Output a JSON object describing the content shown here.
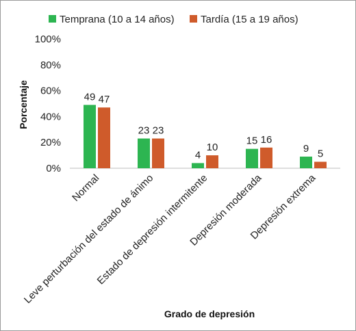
{
  "chart_data": {
    "type": "bar",
    "xlabel": "Grado de depresión",
    "ylabel": "Porcentaje",
    "ylim": [
      0,
      100
    ],
    "yticks": [
      "0%",
      "20%",
      "40%",
      "60%",
      "80%",
      "100%"
    ],
    "legend_position": "top",
    "grid": false,
    "categories": [
      "Normal",
      "Leve perturbación del estado de ánimo",
      "Estado de depresión intermitente",
      "Depresión moderada",
      "Depresión extrema"
    ],
    "series": [
      {
        "name": "Temprana (10 a 14 años)",
        "color": "#2db551",
        "values": [
          49,
          23,
          4,
          15,
          9
        ]
      },
      {
        "name": "Tardía (15 a 19 años)",
        "color": "#cf5b2b",
        "values": [
          47,
          23,
          10,
          16,
          5
        ]
      }
    ]
  }
}
